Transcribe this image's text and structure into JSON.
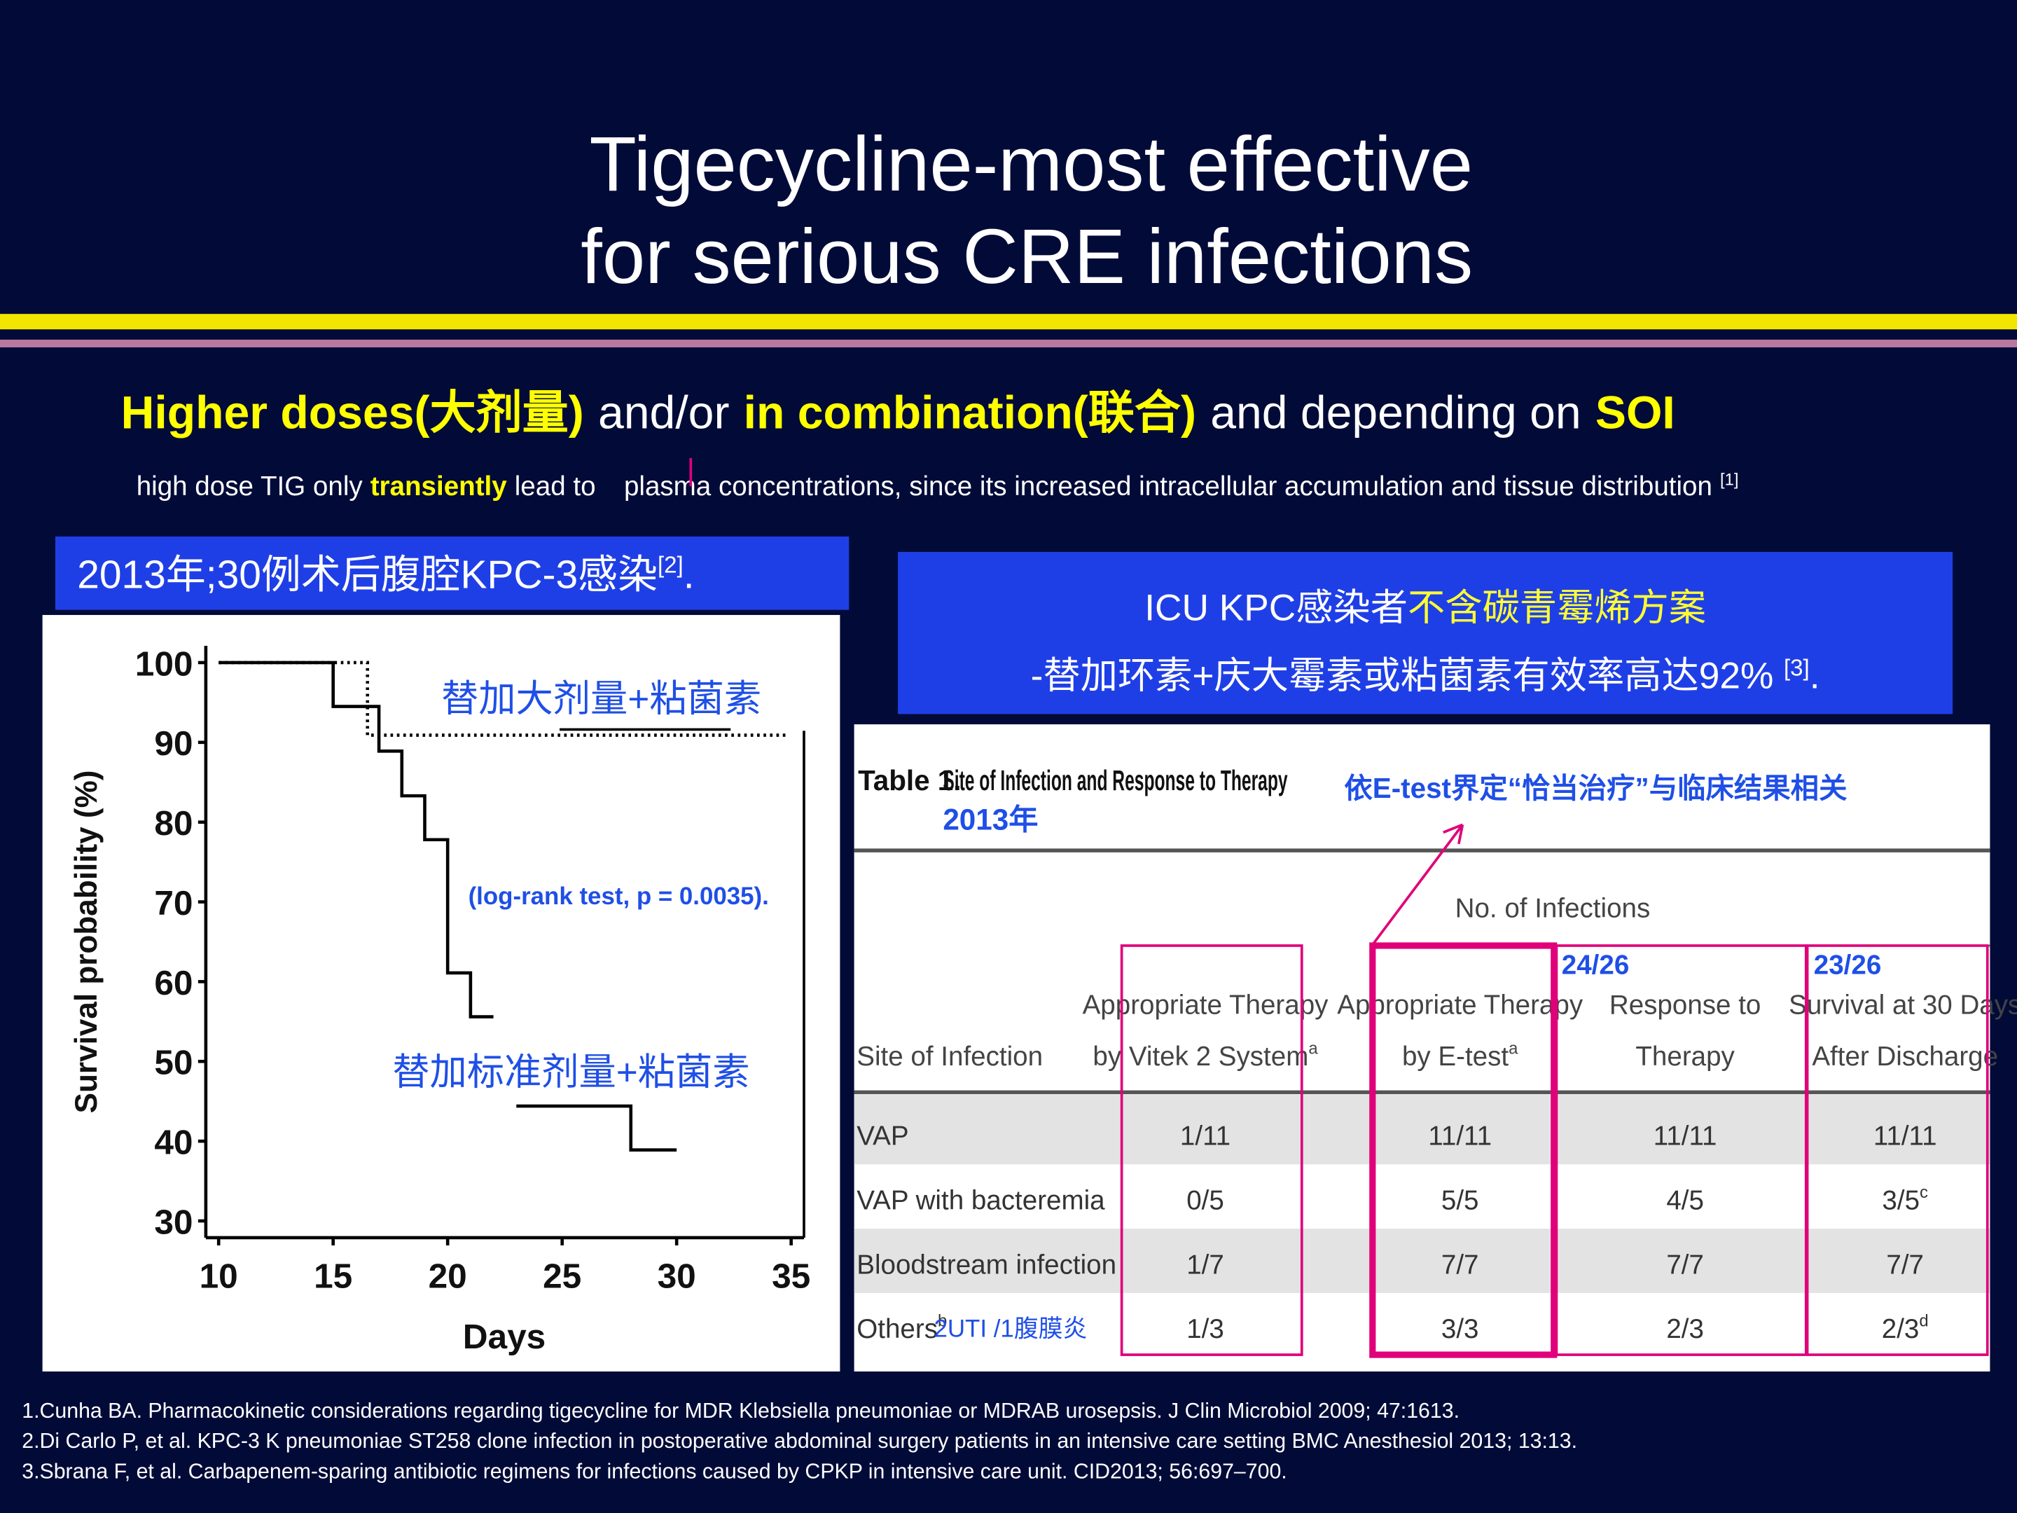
{
  "slide": {
    "title_lines": [
      "Tigecycline-most effective",
      "for serious CRE infections"
    ],
    "headline": [
      "Higher doses(大剂量)",
      "and/or",
      "in combination(联合)",
      "and depending on",
      "SOI"
    ],
    "subline": [
      "high dose TIG only",
      "transiently",
      "lead to",
      "plasma concentrations, since its increased intracellular accumulation and tissue distribution",
      "[1]"
    ],
    "left_box": [
      "2013年;30例术后腹腔KPC-3感染",
      "[2]",
      "."
    ],
    "right_box": {
      "line1": [
        "ICU KPC感染者",
        "不含碳青霉烯方案"
      ],
      "line2": [
        "-替加环素+庆大霉素或粘菌素有效率高达92%",
        "[3]",
        "."
      ]
    },
    "references": [
      "1.Cunha BA. Pharmacokinetic considerations regarding tigecycline for MDR Klebsiella pneumoniae or MDRAB urosepsis. J Clin Microbiol 2009; 47:1613.",
      "2.Di Carlo P, et al. KPC-3 K pneumoniae ST258 clone infection in postoperative abdominal surgery patients in an intensive care setting  BMC Anesthesiol 2013; 13:13.",
      "3.Sbrana F, et al. Carbapenem-sparing antibiotic regimens for infections caused by CPKP in intensive care unit. CID2013; 56:697–700."
    ]
  },
  "chart_data": {
    "type": "line",
    "xlabel": "Days",
    "ylabel": "Survival probability (%)",
    "xlim": [
      9.44,
      35.56
    ],
    "ylim": [
      27.9,
      102.1
    ],
    "xticks": [
      10,
      15,
      20,
      25,
      30,
      35
    ],
    "yticks": [
      30,
      40,
      50,
      60,
      70,
      80,
      90,
      100
    ],
    "annotation": "(log-rank test, p = 0.0035).",
    "series": [
      {
        "name": "替加大剂量+粘菌素",
        "color": "#000000",
        "style": "dotted",
        "x": [
          10,
          16.5,
          34.8
        ],
        "values": [
          100,
          90.9,
          90.9
        ]
      },
      {
        "name": "替加标准剂量+粘菌素",
        "color": "#000000",
        "style": "solid",
        "x": [
          10,
          15,
          17,
          18,
          19,
          20,
          21,
          22,
          null,
          23,
          28,
          30
        ],
        "values": [
          100,
          94.5,
          88.9,
          83.3,
          77.8,
          61.1,
          55.6,
          55.6,
          null,
          44.4,
          38.9,
          38.9
        ]
      }
    ]
  },
  "table": {
    "caption": "Table 1.",
    "title": "Site of Infection and Response to Therapy",
    "year": "2013年",
    "note": "依E-test界定“恰当治疗”与临床结果相关",
    "group_header": "No. of Infections",
    "columns": [
      {
        "lines": [
          "Site of Infection"
        ]
      },
      {
        "lines": [
          "Appropriate Therapy",
          "by Vitek 2 System"
        ],
        "sup": "a"
      },
      {
        "lines": [
          "Appropriate Therapy",
          "by E-test"
        ],
        "sup": "a"
      },
      {
        "lines": [
          "Response to",
          "Therapy"
        ]
      },
      {
        "lines": [
          "Survival at 30 Days",
          "After Discharge"
        ]
      }
    ],
    "rows": [
      [
        "VAP",
        "1/11",
        "11/11",
        "11/11",
        "11/11"
      ],
      [
        "VAP with bacteremia",
        "0/5",
        "5/5",
        "4/5",
        {
          "text": "3/5",
          "sup": "c"
        }
      ],
      [
        "Bloodstream infection",
        "1/7",
        "7/7",
        "7/7",
        "7/7"
      ],
      [
        {
          "text": "Others",
          "sup": "b"
        },
        "1/3",
        "3/3",
        "2/3",
        {
          "text": "2/3",
          "sup": "d"
        }
      ]
    ],
    "totals": [
      "24/26",
      "23/26"
    ],
    "others_note": "2UTI /1腹膜炎"
  }
}
